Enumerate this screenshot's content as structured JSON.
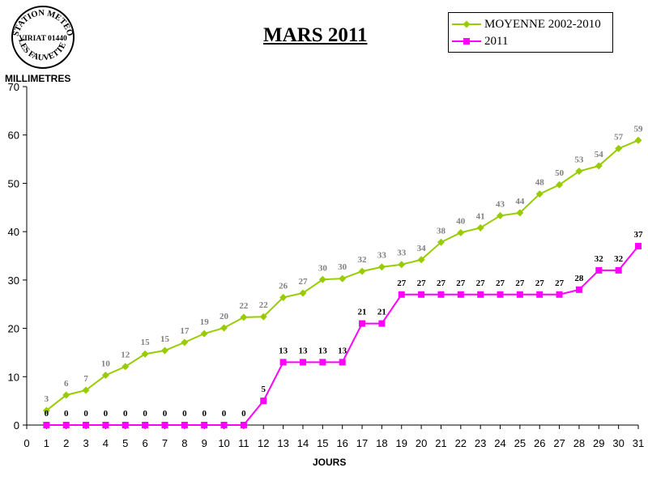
{
  "stamp": {
    "line1": "STATION METEO",
    "line2": "VIRIAT 01440",
    "line3": "LES FAUVETTES"
  },
  "chart_data": {
    "type": "line",
    "title": "MARS 2011",
    "xlabel": "JOURS",
    "ylabel": "MILLIMETRES",
    "xlim": [
      0,
      31
    ],
    "ylim": [
      0,
      70
    ],
    "x_ticks": [
      0,
      1,
      2,
      3,
      4,
      5,
      6,
      7,
      8,
      9,
      10,
      11,
      12,
      13,
      14,
      15,
      16,
      17,
      18,
      19,
      20,
      21,
      22,
      23,
      24,
      25,
      26,
      27,
      28,
      29,
      30,
      31
    ],
    "y_ticks": [
      0,
      10,
      20,
      30,
      40,
      50,
      60,
      70
    ],
    "grid": false,
    "legend_position": "top-right",
    "x": [
      1,
      2,
      3,
      4,
      5,
      6,
      7,
      8,
      9,
      10,
      11,
      12,
      13,
      14,
      15,
      16,
      17,
      18,
      19,
      20,
      21,
      22,
      23,
      24,
      25,
      26,
      27,
      28,
      29,
      30,
      31
    ],
    "series": [
      {
        "name": "MOYENNE 2002-2010",
        "color": "#99CC00",
        "label_color": "#808080",
        "marker": "diamond",
        "values": [
          3.0,
          6.2,
          7.2,
          10.3,
          12.1,
          14.7,
          15.4,
          17.1,
          18.9,
          20.1,
          22.3,
          22.4,
          26.4,
          27.3,
          30.1,
          30.3,
          31.8,
          32.7,
          33.2,
          34.2,
          37.8,
          39.8,
          40.8,
          43.3,
          43.9,
          47.8,
          49.7,
          52.5,
          53.6,
          57.2,
          58.9
        ],
        "labels": [
          "3",
          "6",
          "7",
          "10",
          "12",
          "15",
          "15",
          "17",
          "19",
          "20",
          "22",
          "22",
          "26",
          "27",
          "30",
          "30",
          "32",
          "33",
          "33",
          "34",
          "38",
          "40",
          "41",
          "43",
          "44",
          "48",
          "50",
          "53",
          "54",
          "57",
          "59"
        ]
      },
      {
        "name": "2011",
        "color": "#FF00FF",
        "label_color": "#000000",
        "marker": "square",
        "values": [
          0,
          0,
          0,
          0,
          0,
          0,
          0,
          0,
          0,
          0,
          0,
          5,
          13,
          13,
          13,
          13,
          21,
          21,
          27,
          27,
          27,
          27,
          27,
          27,
          27,
          27,
          27,
          28,
          32,
          32,
          37
        ],
        "labels": [
          "0",
          "0",
          "0",
          "0",
          "0",
          "0",
          "0",
          "0",
          "0",
          "0",
          "0",
          "5",
          "13",
          "13",
          "13",
          "13",
          "21",
          "21",
          "27",
          "27",
          "27",
          "27",
          "27",
          "27",
          "27",
          "27",
          "27",
          "28",
          "32",
          "32",
          "37"
        ]
      }
    ]
  }
}
